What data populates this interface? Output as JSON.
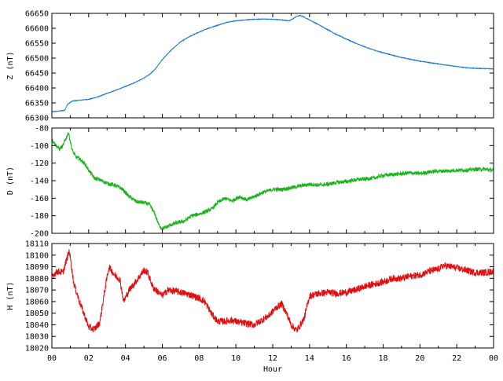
{
  "chart_data": [
    {
      "type": "line",
      "ylabel": "Z (nT)",
      "ylim": [
        66300,
        66650
      ],
      "yticks": [
        66300,
        66350,
        66400,
        66450,
        66500,
        66550,
        66600,
        66650
      ],
      "xlim": [
        0,
        24
      ],
      "color": "#1f78d0",
      "series": [
        {
          "x": [
            0,
            0.3,
            0.7,
            0.85,
            1.1,
            1.5,
            2.0,
            2.5,
            3.0,
            3.5,
            4.0,
            4.5,
            5.0,
            5.3,
            5.6,
            6.0,
            6.5,
            7.0,
            7.5,
            8.0,
            8.5,
            9.0,
            9.5,
            10.0,
            10.5,
            11.0,
            11.5,
            12.0,
            12.5,
            12.9,
            13.1,
            13.3,
            13.5,
            13.7,
            14.0,
            14.5,
            15.0,
            15.5,
            16.0,
            16.5,
            17.0,
            17.5,
            18.0,
            18.5,
            19.0,
            19.5,
            20.0,
            20.5,
            21.0,
            21.5,
            22.0,
            22.5,
            23.0,
            23.5,
            24.0
          ],
          "values": [
            66320,
            66322,
            66325,
            66345,
            66356,
            66359,
            66362,
            66370,
            66382,
            66393,
            66405,
            66418,
            66433,
            66445,
            66462,
            66495,
            66528,
            66555,
            66573,
            66587,
            66600,
            66610,
            66620,
            66625,
            66628,
            66630,
            66631,
            66630,
            66628,
            66625,
            66632,
            66640,
            66643,
            66638,
            66628,
            66612,
            66595,
            66578,
            66564,
            66550,
            66538,
            66527,
            66518,
            66510,
            66502,
            66496,
            66490,
            66485,
            66481,
            66476,
            66472,
            66468,
            66466,
            66465,
            66464
          ]
        }
      ]
    },
    {
      "type": "line",
      "ylabel": "D (nT)",
      "ylim": [
        -200,
        -80
      ],
      "yticks": [
        -200,
        -180,
        -160,
        -140,
        -120,
        -100,
        -80
      ],
      "xlim": [
        0,
        24
      ],
      "color": "#1bb31b",
      "series": [
        {
          "x": [
            0,
            0.2,
            0.4,
            0.6,
            0.8,
            0.9,
            1.0,
            1.1,
            1.3,
            1.5,
            1.8,
            2.0,
            2.3,
            2.6,
            3.0,
            3.4,
            3.8,
            4.2,
            4.6,
            5.0,
            5.3,
            5.6,
            5.8,
            6.0,
            6.4,
            6.8,
            7.2,
            7.6,
            8.0,
            8.4,
            8.7,
            9.0,
            9.4,
            9.8,
            10.2,
            10.6,
            11.0,
            11.5,
            12.0,
            12.5,
            13.0,
            13.5,
            14.0,
            14.5,
            15.0,
            15.5,
            16.0,
            16.5,
            17.0,
            17.5,
            18.0,
            18.5,
            19.0,
            19.5,
            20.0,
            20.5,
            21.0,
            21.5,
            22.0,
            22.5,
            23.0,
            23.5,
            24.0
          ],
          "values": [
            -93,
            -99,
            -104,
            -100,
            -90,
            -85,
            -95,
            -105,
            -113,
            -115,
            -121,
            -128,
            -137,
            -139,
            -143,
            -145,
            -149,
            -158,
            -164,
            -165,
            -167,
            -178,
            -190,
            -195,
            -191,
            -188,
            -186,
            -180,
            -178,
            -175,
            -172,
            -165,
            -160,
            -163,
            -158,
            -162,
            -158,
            -153,
            -150,
            -150,
            -148,
            -146,
            -144,
            -145,
            -144,
            -142,
            -141,
            -139,
            -138,
            -137,
            -134,
            -133,
            -132,
            -131,
            -132,
            -130,
            -129,
            -129,
            -128,
            -128,
            -127,
            -127,
            -128
          ]
        }
      ]
    },
    {
      "type": "line",
      "ylabel": "H (nT)",
      "ylim": [
        18020,
        18110
      ],
      "yticks": [
        18020,
        18030,
        18040,
        18050,
        18060,
        18070,
        18080,
        18090,
        18100,
        18110
      ],
      "xlim": [
        0,
        24
      ],
      "xticks": [
        "00",
        "02",
        "04",
        "06",
        "08",
        "10",
        "12",
        "14",
        "16",
        "18",
        "20",
        "22",
        "00"
      ],
      "xlabel": "Hour",
      "color": "#e01010",
      "series": [
        {
          "x": [
            0,
            0.3,
            0.6,
            0.8,
            0.95,
            1.05,
            1.2,
            1.5,
            1.8,
            2.0,
            2.3,
            2.6,
            2.9,
            3.1,
            3.4,
            3.7,
            3.9,
            4.2,
            4.6,
            5.0,
            5.2,
            5.5,
            5.8,
            6.0,
            6.3,
            6.7,
            7.0,
            7.5,
            8.0,
            8.3,
            8.7,
            9.0,
            9.4,
            9.8,
            10.2,
            10.6,
            11.0,
            11.4,
            11.8,
            12.2,
            12.5,
            12.8,
            13.0,
            13.3,
            13.7,
            14.0,
            14.5,
            15.0,
            15.5,
            16.0,
            16.5,
            17.0,
            17.5,
            18.0,
            18.5,
            19.0,
            19.5,
            20.0,
            20.5,
            21.0,
            21.3,
            21.7,
            22.0,
            22.5,
            23.0,
            23.5,
            24.0
          ],
          "values": [
            18082,
            18086,
            18085,
            18096,
            18104,
            18092,
            18075,
            18060,
            18047,
            18038,
            18036,
            18042,
            18072,
            18090,
            18083,
            18079,
            18060,
            18070,
            18078,
            18087,
            18085,
            18072,
            18068,
            18065,
            18070,
            18069,
            18068,
            18066,
            18063,
            18060,
            18049,
            18043,
            18043,
            18044,
            18042,
            18041,
            18040,
            18044,
            18048,
            18055,
            18058,
            18048,
            18040,
            18035,
            18045,
            18065,
            18067,
            18068,
            18067,
            18068,
            18070,
            18073,
            18075,
            18077,
            18080,
            18080,
            18082,
            18083,
            18086,
            18088,
            18091,
            18090,
            18089,
            18087,
            18085,
            18085,
            18086
          ]
        }
      ]
    }
  ]
}
